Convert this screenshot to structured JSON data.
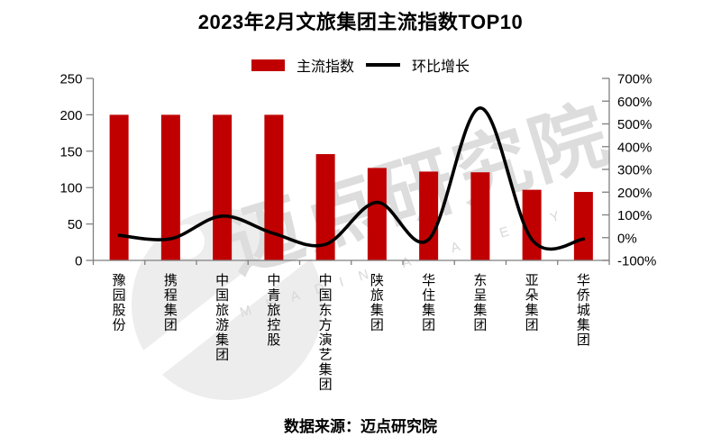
{
  "title": "2023年2月文旅集团主流指数TOP10",
  "legend": {
    "bars_label": "主流指数",
    "line_label": "环比增长"
  },
  "footer": "数据来源：迈点研究院",
  "watermark": {
    "cn": "迈点研究院",
    "en": "MEADIN ACADEMY"
  },
  "colors": {
    "bar": "#C00000",
    "line": "#000000",
    "axis": "#7F7F7F",
    "text": "#000000",
    "watermark_shape": "#EDEDED",
    "watermark_text": "#DDDDDD",
    "watermark_letters": "#D8D8D8"
  },
  "chart_data": {
    "type": "bar",
    "title": "2023年2月文旅集团主流指数TOP10",
    "categories": [
      "豫园股份",
      "携程集团",
      "中国旅游集团",
      "中青旅控股",
      "中国东方演艺集团",
      "陕旅集团",
      "华住集团",
      "东呈集团",
      "亚朵集团",
      "华侨城集团"
    ],
    "series": [
      {
        "name": "主流指数",
        "type": "bar",
        "axis": "left",
        "values": [
          200,
          200,
          200,
          200,
          146,
          127,
          122,
          121,
          97,
          94
        ]
      },
      {
        "name": "环比增长",
        "type": "line",
        "axis": "right",
        "unit": "%",
        "values": [
          10,
          -5,
          95,
          18,
          -30,
          155,
          -8,
          570,
          -8,
          -6
        ]
      }
    ],
    "left_axis": {
      "min": 0,
      "max": 250,
      "step": 50,
      "tick_labels": [
        "0",
        "50",
        "100",
        "150",
        "200",
        "250"
      ]
    },
    "right_axis": {
      "min": -100,
      "max": 700,
      "step": 100,
      "tick_labels": [
        "-100%",
        "0%",
        "100%",
        "200%",
        "300%",
        "400%",
        "500%",
        "600%",
        "700%"
      ]
    },
    "grid": false,
    "legend_position": "top",
    "source": "数据来源：迈点研究院"
  }
}
